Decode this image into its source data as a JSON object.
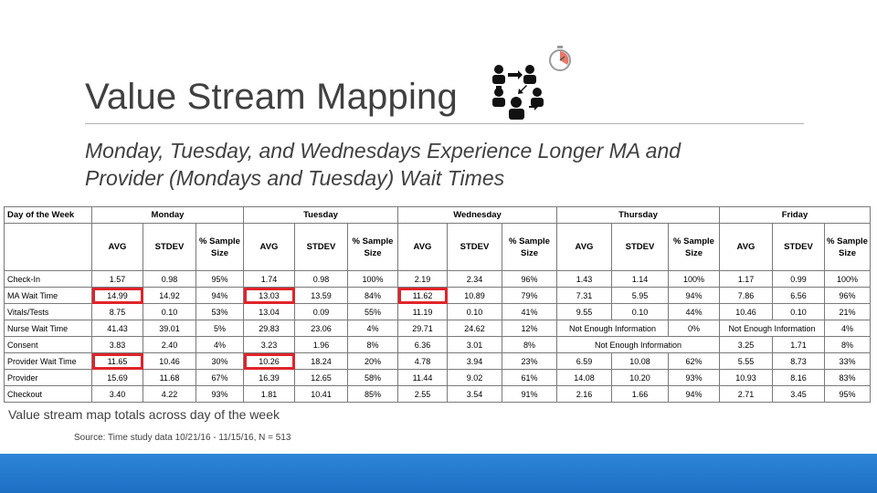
{
  "slide": {
    "title": "Value Stream Mapping",
    "subtitle_line1": "Monday, Tuesday, and Wednesdays Experience Longer MA and",
    "subtitle_line2": "Provider  (Mondays and Tuesday) Wait Times",
    "caption": "Value stream map totals across day of the week",
    "source": "Source: Time study data 10/21/16 - 11/15/16, N = 513",
    "icons": [
      "workflow-people-icon",
      "stopwatch-icon"
    ],
    "highlight_color": "#e0242a",
    "footer_color": "#1d6fc4"
  },
  "table": {
    "corner_label": "Day of the Week",
    "days": [
      "Monday",
      "Tuesday",
      "Wednesday",
      "Thursday",
      "Friday"
    ],
    "subheaders": [
      [
        "AVG",
        "STDEV",
        "% Sample Size"
      ],
      [
        "AVG",
        "STDEV",
        "% Sample Size"
      ],
      [
        "AVG",
        "STDEV",
        "% Sample Size"
      ],
      [
        "AVG",
        "STDEV",
        "% Sample Size"
      ],
      [
        "AVG",
        "STDEV",
        "% Sample Size"
      ]
    ],
    "rows": [
      {
        "label": "Check-In",
        "cells": [
          [
            "1.57",
            "0.98",
            "95%"
          ],
          [
            "1.74",
            "0.98",
            "100%"
          ],
          [
            "2.19",
            "2.34",
            "96%"
          ],
          [
            "1.43",
            "1.14",
            "100%"
          ],
          [
            "1.17",
            "0.99",
            "100%"
          ]
        ]
      },
      {
        "label": "MA Wait Time",
        "cells": [
          [
            "14.99",
            "14.92",
            "94%"
          ],
          [
            "13.03",
            "13.59",
            "84%"
          ],
          [
            "11.62",
            "10.89",
            "79%"
          ],
          [
            "7.31",
            "5.95",
            "94%"
          ],
          [
            "7.86",
            "6.56",
            "96%"
          ]
        ]
      },
      {
        "label": "Vitals/Tests",
        "cells": [
          [
            "8.75",
            "0.10",
            "53%"
          ],
          [
            "13.04",
            "0.09",
            "55%"
          ],
          [
            "11.19",
            "0.10",
            "41%"
          ],
          [
            "9.55",
            "0.10",
            "44%"
          ],
          [
            "10.46",
            "0.10",
            "21%"
          ]
        ]
      },
      {
        "label": "Nurse Wait Time",
        "cells": [
          [
            "41.43",
            "39.01",
            "5%"
          ],
          [
            "29.83",
            "23.06",
            "4%"
          ],
          [
            "29.71",
            "24.62",
            "12%"
          ],
          [
            "Not Enough Information",
            "0%"
          ],
          [
            "Not Enough Information",
            "4%"
          ]
        ]
      },
      {
        "label": "Consent",
        "cells": [
          [
            "3.83",
            "2.40",
            "4%"
          ],
          [
            "3.23",
            "1.96",
            "8%"
          ],
          [
            "6.36",
            "3.01",
            "8%"
          ],
          [
            "Not Enough Information"
          ],
          [
            "3.25",
            "1.71",
            "8%"
          ]
        ]
      },
      {
        "label": "Provider Wait Time",
        "cells": [
          [
            "11.65",
            "10.46",
            "30%"
          ],
          [
            "10.26",
            "18.24",
            "20%"
          ],
          [
            "4.78",
            "3.94",
            "23%"
          ],
          [
            "6.59",
            "10.08",
            "62%"
          ],
          [
            "5.55",
            "8.73",
            "33%"
          ]
        ]
      },
      {
        "label": "Provider",
        "cells": [
          [
            "15.69",
            "11.68",
            "67%"
          ],
          [
            "16.39",
            "12.65",
            "58%"
          ],
          [
            "11.44",
            "9.02",
            "61%"
          ],
          [
            "14.08",
            "10.20",
            "93%"
          ],
          [
            "10.93",
            "8.16",
            "83%"
          ]
        ]
      },
      {
        "label": "Checkout",
        "cells": [
          [
            "3.40",
            "4.22",
            "93%"
          ],
          [
            "1.81",
            "10.41",
            "85%"
          ],
          [
            "2.55",
            "3.54",
            "91%"
          ],
          [
            "2.16",
            "1.66",
            "94%"
          ],
          [
            "2.71",
            "3.45",
            "95%"
          ]
        ]
      }
    ],
    "highlighted_cells": [
      "1-0-0",
      "1-1-0",
      "1-2-0",
      "5-0-0",
      "5-1-0"
    ]
  }
}
